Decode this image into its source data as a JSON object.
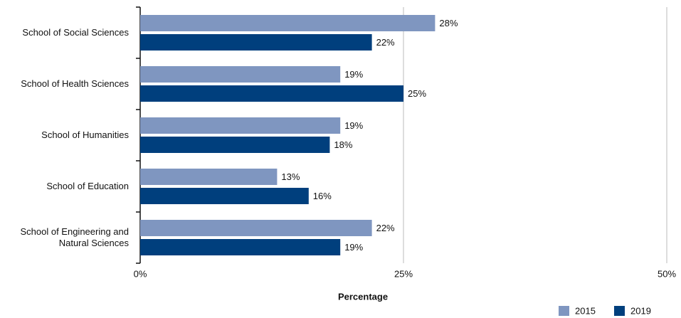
{
  "chart_data": {
    "type": "barh",
    "categories": [
      "School of Social Sciences",
      "School of Health Sciences",
      "School of Humanities",
      "School of Education",
      "School of Engineering and Natural Sciences"
    ],
    "series": [
      {
        "name": "2015",
        "color": "#7f96c0",
        "values": [
          28,
          19,
          19,
          13,
          22
        ],
        "value_labels": [
          "28%",
          "19%",
          "19%",
          "13%",
          "22%"
        ]
      },
      {
        "name": "2019",
        "color": "#003f7d",
        "values": [
          22,
          25,
          18,
          16,
          19
        ],
        "value_labels": [
          "22%",
          "25%",
          "18%",
          "16%",
          "19%"
        ]
      }
    ],
    "xlabel": "Percentage",
    "xlim": [
      0,
      50
    ],
    "xticks": [
      {
        "value": 0,
        "label": "0%"
      },
      {
        "value": 25,
        "label": "25%"
      },
      {
        "value": 50,
        "label": "50%"
      }
    ],
    "grid": true,
    "legend": "bottom-right"
  }
}
